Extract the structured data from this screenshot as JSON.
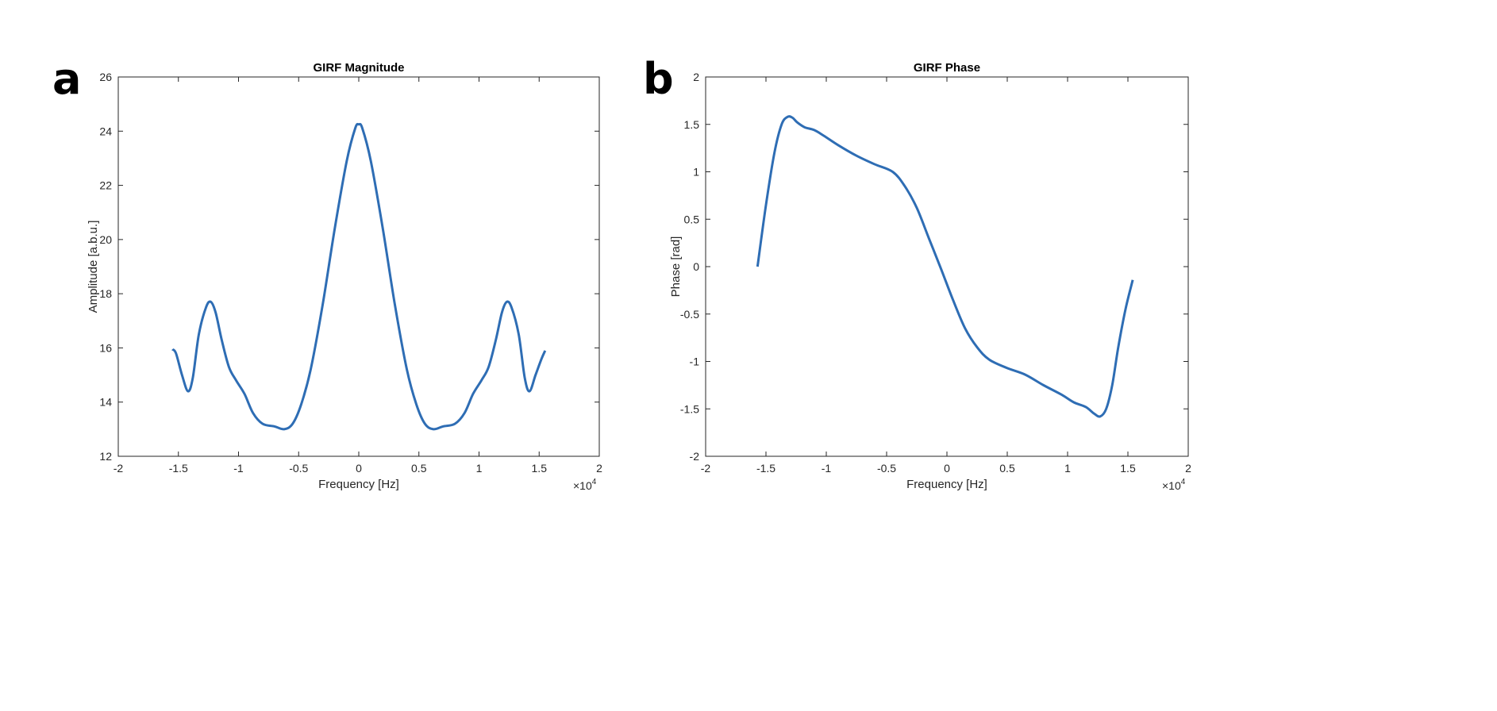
{
  "chart_data": [
    {
      "type": "line",
      "panel": "a",
      "title": "GIRF Magnitude",
      "xlabel": "Frequency [Hz]",
      "ylabel": "Amplitude [a.b.u.]",
      "x_multiplier": "×10",
      "x_multiplier_exp": "4",
      "xlim": [
        -2,
        2
      ],
      "ylim": [
        12,
        26
      ],
      "xticks": [
        -2,
        -1.5,
        -1,
        -0.5,
        0,
        0.5,
        1,
        1.5,
        2
      ],
      "xtick_labels": [
        "-2",
        "-1.5",
        "-1",
        "-0.5",
        "0",
        "0.5",
        "1",
        "1.5",
        "2"
      ],
      "yticks": [
        12,
        14,
        16,
        18,
        20,
        22,
        24,
        26
      ],
      "ytick_labels": [
        "12",
        "14",
        "16",
        "18",
        "20",
        "22",
        "24",
        "26"
      ],
      "color": "#2e6db4",
      "x": [
        -1.55,
        -1.52,
        -1.47,
        -1.42,
        -1.38,
        -1.33,
        -1.27,
        -1.23,
        -1.19,
        -1.14,
        -1.08,
        -1.02,
        -0.95,
        -0.88,
        -0.8,
        -0.7,
        -0.62,
        -0.55,
        -0.48,
        -0.4,
        -0.3,
        -0.2,
        -0.1,
        -0.03,
        0,
        0.03,
        0.1,
        0.2,
        0.3,
        0.4,
        0.48,
        0.55,
        0.62,
        0.7,
        0.8,
        0.88,
        0.95,
        1.02,
        1.08,
        1.14,
        1.19,
        1.23,
        1.27,
        1.33,
        1.38,
        1.42,
        1.47,
        1.52,
        1.55
      ],
      "y": [
        15.95,
        15.8,
        15.0,
        14.4,
        14.9,
        16.5,
        17.5,
        17.7,
        17.3,
        16.3,
        15.3,
        14.8,
        14.3,
        13.6,
        13.2,
        13.1,
        13.0,
        13.2,
        13.9,
        15.2,
        17.6,
        20.4,
        22.9,
        24.1,
        24.25,
        24.1,
        22.9,
        20.4,
        17.6,
        15.2,
        13.9,
        13.2,
        13.0,
        13.1,
        13.2,
        13.6,
        14.3,
        14.8,
        15.3,
        16.3,
        17.3,
        17.7,
        17.5,
        16.5,
        14.9,
        14.4,
        15.0,
        15.6,
        15.9
      ]
    },
    {
      "type": "line",
      "panel": "b",
      "title": "GIRF Phase",
      "xlabel": "Frequency [Hz]",
      "ylabel": "Phase [rad]",
      "x_multiplier": "×10",
      "x_multiplier_exp": "4",
      "xlim": [
        -2,
        2
      ],
      "ylim": [
        -2,
        2
      ],
      "xticks": [
        -2,
        -1.5,
        -1,
        -0.5,
        0,
        0.5,
        1,
        1.5,
        2
      ],
      "xtick_labels": [
        "-2",
        "-1.5",
        "-1",
        "-0.5",
        "0",
        "0.5",
        "1",
        "1.5",
        "2"
      ],
      "yticks": [
        -2,
        -1.5,
        -1,
        -0.5,
        0,
        0.5,
        1,
        1.5,
        2
      ],
      "ytick_labels": [
        "-2",
        "-1.5",
        "-1",
        "-0.5",
        "0",
        "0.5",
        "1",
        "1.5",
        "2"
      ],
      "color": "#2e6db4",
      "x": [
        -1.57,
        -1.5,
        -1.43,
        -1.37,
        -1.32,
        -1.28,
        -1.24,
        -1.18,
        -1.1,
        -1.02,
        -0.9,
        -0.75,
        -0.6,
        -0.45,
        -0.35,
        -0.25,
        -0.15,
        -0.05,
        0.05,
        0.15,
        0.25,
        0.35,
        0.5,
        0.65,
        0.8,
        0.95,
        1.05,
        1.15,
        1.22,
        1.27,
        1.32,
        1.37,
        1.42,
        1.48,
        1.54
      ],
      "y": [
        0.0,
        0.65,
        1.2,
        1.5,
        1.58,
        1.57,
        1.52,
        1.47,
        1.44,
        1.38,
        1.28,
        1.17,
        1.08,
        1.0,
        0.85,
        0.62,
        0.3,
        -0.02,
        -0.35,
        -0.65,
        -0.85,
        -0.98,
        -1.07,
        -1.14,
        -1.25,
        -1.35,
        -1.43,
        -1.48,
        -1.55,
        -1.58,
        -1.5,
        -1.25,
        -0.85,
        -0.45,
        -0.14
      ]
    }
  ]
}
